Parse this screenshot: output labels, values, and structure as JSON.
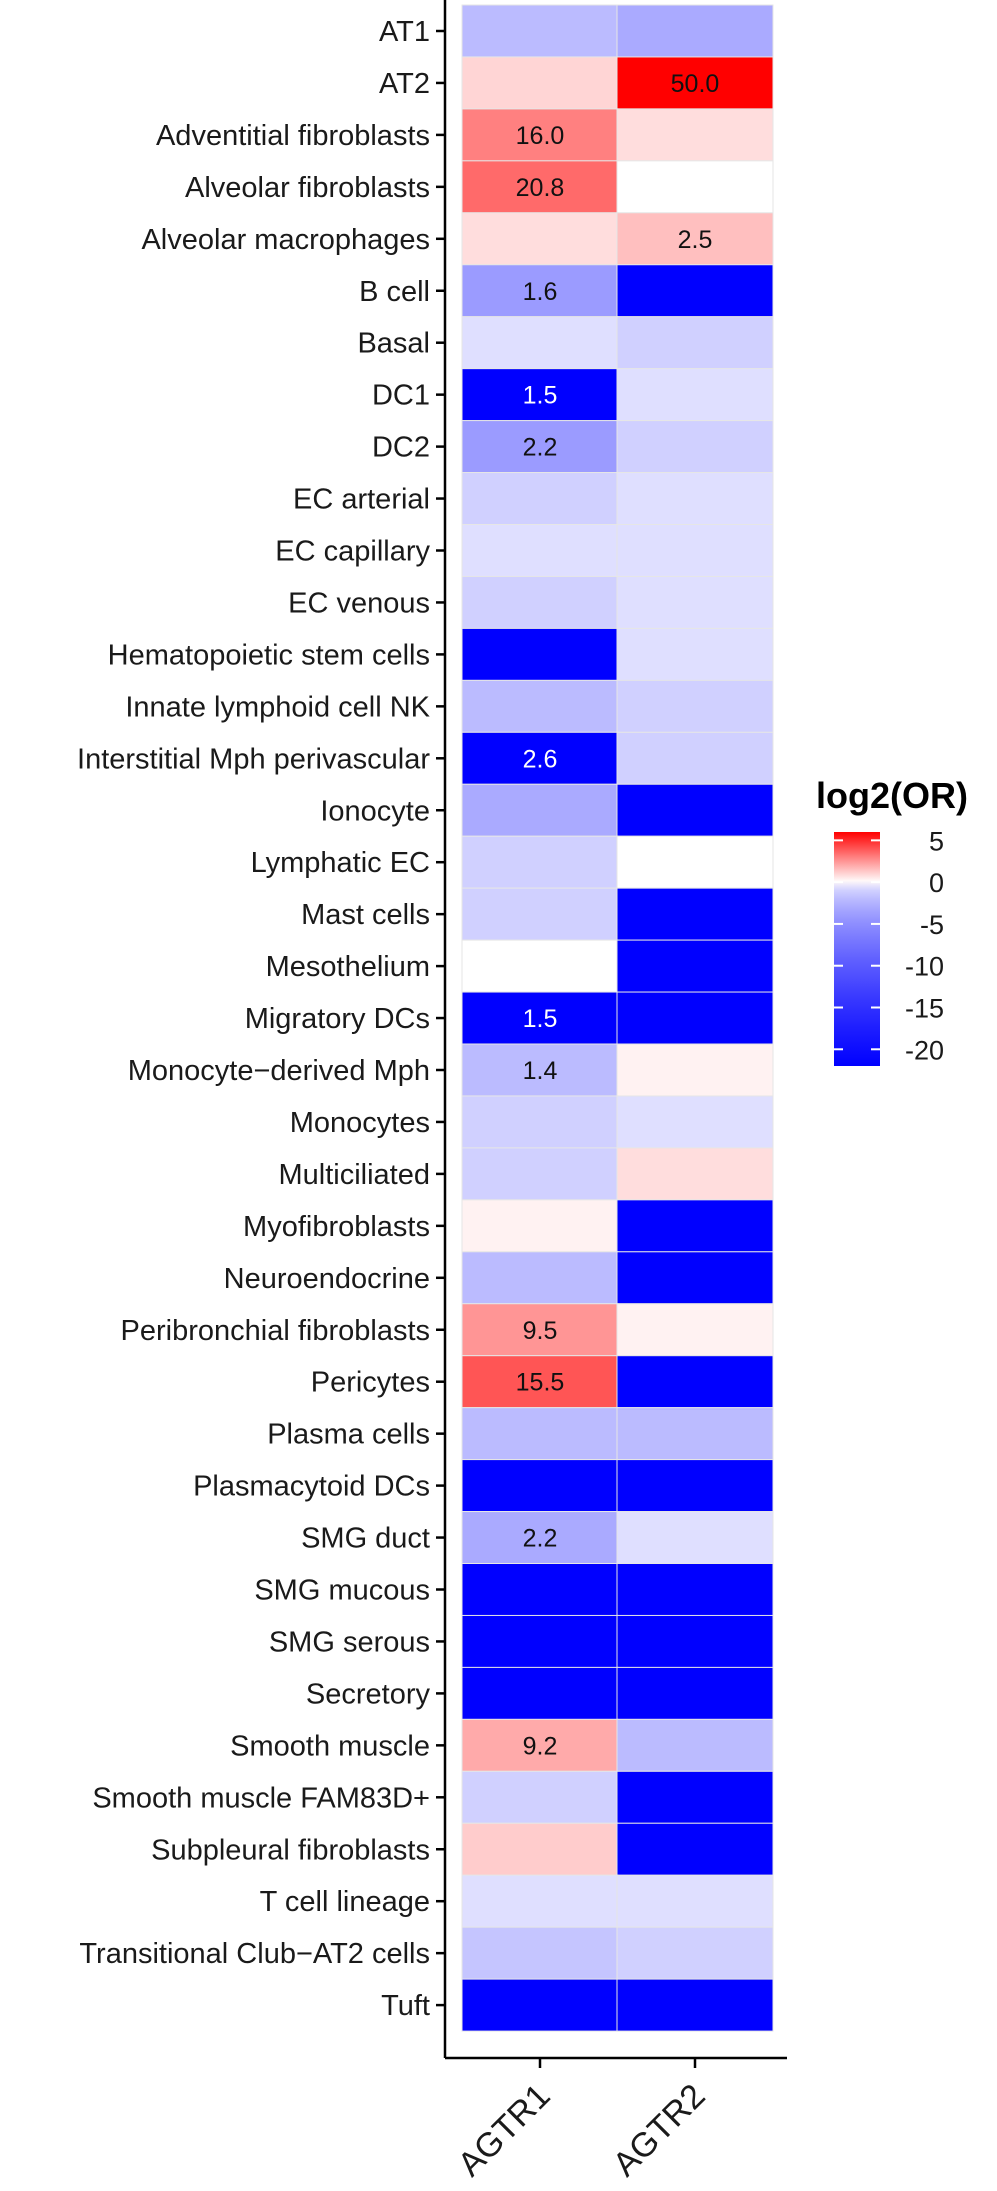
{
  "chart_data": {
    "type": "heatmap",
    "title": "",
    "xlabel": "",
    "ylabel": "",
    "x_categories": [
      "AGTR1",
      "AGTR2"
    ],
    "y_categories": [
      "AT1",
      "AT2",
      "Adventitial fibroblasts",
      "Alveolar fibroblasts",
      "Alveolar macrophages",
      "B cell",
      "Basal",
      "DC1",
      "DC2",
      "EC arterial",
      "EC capillary",
      "EC venous",
      "Hematopoietic stem cells",
      "Innate lymphoid cell NK",
      "Interstitial Mph perivascular",
      "Ionocyte",
      "Lymphatic EC",
      "Mast cells",
      "Mesothelium",
      "Migratory DCs",
      "Monocyte−derived Mph",
      "Monocytes",
      "Multiciliated",
      "Myofibroblasts",
      "Neuroendocrine",
      "Peribronchial fibroblasts",
      "Pericytes",
      "Plasma cells",
      "Plasmacytoid DCs",
      "SMG duct",
      "SMG mucous",
      "SMG serous",
      "Secretory",
      "Smooth muscle",
      "Smooth muscle FAM83D+",
      "Subpleural fibroblasts",
      "T cell lineage",
      "Transitional Club−AT2 cells",
      "Tuft"
    ],
    "values_log2OR": [
      [
        -2,
        -3
      ],
      [
        1,
        6
      ],
      [
        3,
        0.8
      ],
      [
        3.5,
        0
      ],
      [
        0.8,
        1.5
      ],
      [
        -4,
        -22
      ],
      [
        -0.5,
        -1
      ],
      [
        -22,
        -0.5
      ],
      [
        -4,
        -1
      ],
      [
        -1,
        -0.5
      ],
      [
        -0.5,
        -0.5
      ],
      [
        -1,
        -0.5
      ],
      [
        -22,
        -0.5
      ],
      [
        -2,
        -1
      ],
      [
        -22,
        -1
      ],
      [
        -3,
        -22
      ],
      [
        -1,
        0
      ],
      [
        -1,
        -22
      ],
      [
        0,
        -22
      ],
      [
        -22,
        -22
      ],
      [
        -2,
        0.3
      ],
      [
        -1,
        -0.5
      ],
      [
        -1,
        0.8
      ],
      [
        0.3,
        -22
      ],
      [
        -2,
        -22
      ],
      [
        2.5,
        0.3
      ],
      [
        4,
        -22
      ],
      [
        -2,
        -2
      ],
      [
        -22,
        -22
      ],
      [
        -3,
        -0.5
      ],
      [
        -22,
        -22
      ],
      [
        -22,
        -22
      ],
      [
        -22,
        -22
      ],
      [
        2,
        -2
      ],
      [
        -1,
        -22
      ],
      [
        1.2,
        -22
      ],
      [
        -0.5,
        -0.5
      ],
      [
        -1.5,
        -1
      ],
      [
        -22,
        -22
      ]
    ],
    "cell_labels": [
      [
        "",
        ""
      ],
      [
        "",
        "50.0"
      ],
      [
        "16.0",
        ""
      ],
      [
        "20.8",
        ""
      ],
      [
        "",
        "2.5"
      ],
      [
        "1.6",
        ""
      ],
      [
        "",
        ""
      ],
      [
        "1.5",
        ""
      ],
      [
        "2.2",
        ""
      ],
      [
        "",
        ""
      ],
      [
        "",
        ""
      ],
      [
        "",
        ""
      ],
      [
        "",
        ""
      ],
      [
        "",
        ""
      ],
      [
        "2.6",
        ""
      ],
      [
        "",
        ""
      ],
      [
        "",
        ""
      ],
      [
        "",
        ""
      ],
      [
        "",
        ""
      ],
      [
        "1.5",
        ""
      ],
      [
        "1.4",
        ""
      ],
      [
        "",
        ""
      ],
      [
        "",
        ""
      ],
      [
        "",
        ""
      ],
      [
        "",
        ""
      ],
      [
        "9.5",
        ""
      ],
      [
        "15.5",
        ""
      ],
      [
        "",
        ""
      ],
      [
        "",
        ""
      ],
      [
        "2.2",
        ""
      ],
      [
        "",
        ""
      ],
      [
        "",
        ""
      ],
      [
        "",
        ""
      ],
      [
        "9.2",
        ""
      ],
      [
        "",
        ""
      ],
      [
        "",
        ""
      ],
      [
        "",
        ""
      ],
      [
        "",
        ""
      ],
      [
        "",
        ""
      ]
    ],
    "legend": {
      "title": "log2(OR)",
      "ticks": [
        5,
        0,
        -5,
        -10,
        -15,
        -20
      ],
      "tick_labels": [
        "5",
        "0",
        "-5",
        "-10",
        "-15",
        "-20"
      ],
      "range": [
        -22,
        6
      ],
      "placement": "right"
    },
    "colors": {
      "high": "#ff0000",
      "mid": "#ffffff",
      "low": "#0000ff",
      "tile_border": "#e6e6e6",
      "axis": "#000000"
    }
  }
}
